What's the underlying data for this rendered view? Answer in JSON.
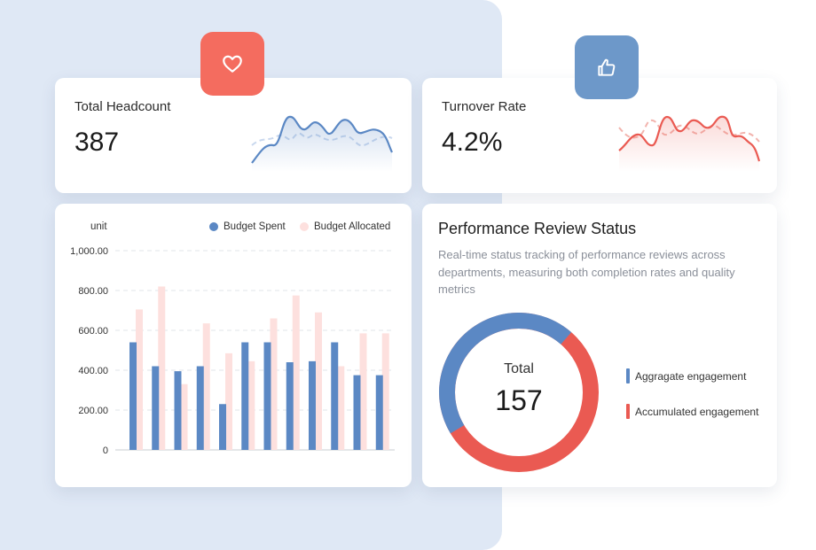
{
  "colors": {
    "blue": "#5b88c4",
    "pink": "#fde0de",
    "red": "#ea5a52",
    "headcount_badge": "#f46c5f",
    "turnover_badge": "#6d98c9"
  },
  "headcount": {
    "label": "Total Headcount",
    "value": "387",
    "icon": "heart-icon"
  },
  "turnover": {
    "label": "Turnover Rate",
    "value": "4.2%",
    "icon": "thumbs-up-icon"
  },
  "budget_chart": {
    "unit_label": "unit",
    "legend": {
      "spent": "Budget Spent",
      "allocated": "Budget Allocated"
    },
    "y_ticks": [
      "1,000.00",
      "800.00",
      "600.00",
      "400.00",
      "200.00",
      "0"
    ]
  },
  "chart_data": {
    "type": "bar",
    "ylabel": "unit",
    "ylim": [
      0,
      1000
    ],
    "grid": true,
    "legend_position": "top-right",
    "series": [
      {
        "name": "Budget Spent",
        "values": [
          540,
          420,
          395,
          420,
          230,
          540,
          540,
          440,
          445,
          540,
          375,
          375
        ]
      },
      {
        "name": "Budget Allocated",
        "values": [
          705,
          820,
          330,
          635,
          485,
          445,
          660,
          775,
          690,
          420,
          585,
          585
        ]
      }
    ]
  },
  "performance": {
    "title": "Performance Review Status",
    "description": "Real-time status tracking of performance reviews across departments, measuring both completion rates and quality metrics",
    "total_label": "Total",
    "total_value": "157",
    "legend": [
      {
        "label": "Aggragate engagement",
        "color": "#5b88c4",
        "share": 0.45
      },
      {
        "label": "Accumulated engagement",
        "color": "#ea5a52",
        "share": 0.55
      }
    ]
  }
}
